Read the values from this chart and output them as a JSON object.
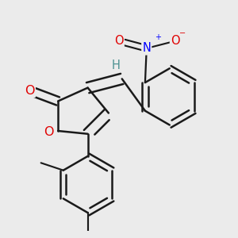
{
  "bg_color": "#ebebeb",
  "bond_color": "#1a1a1a",
  "bond_width": 1.8,
  "dbo": 0.018,
  "atom_colors": {
    "O": "#e00000",
    "N": "#0000ff",
    "H": "#4a9090",
    "C": "#1a1a1a"
  },
  "font_size": 10.5,
  "fig_size": [
    3.0,
    3.0
  ],
  "dpi": 100
}
